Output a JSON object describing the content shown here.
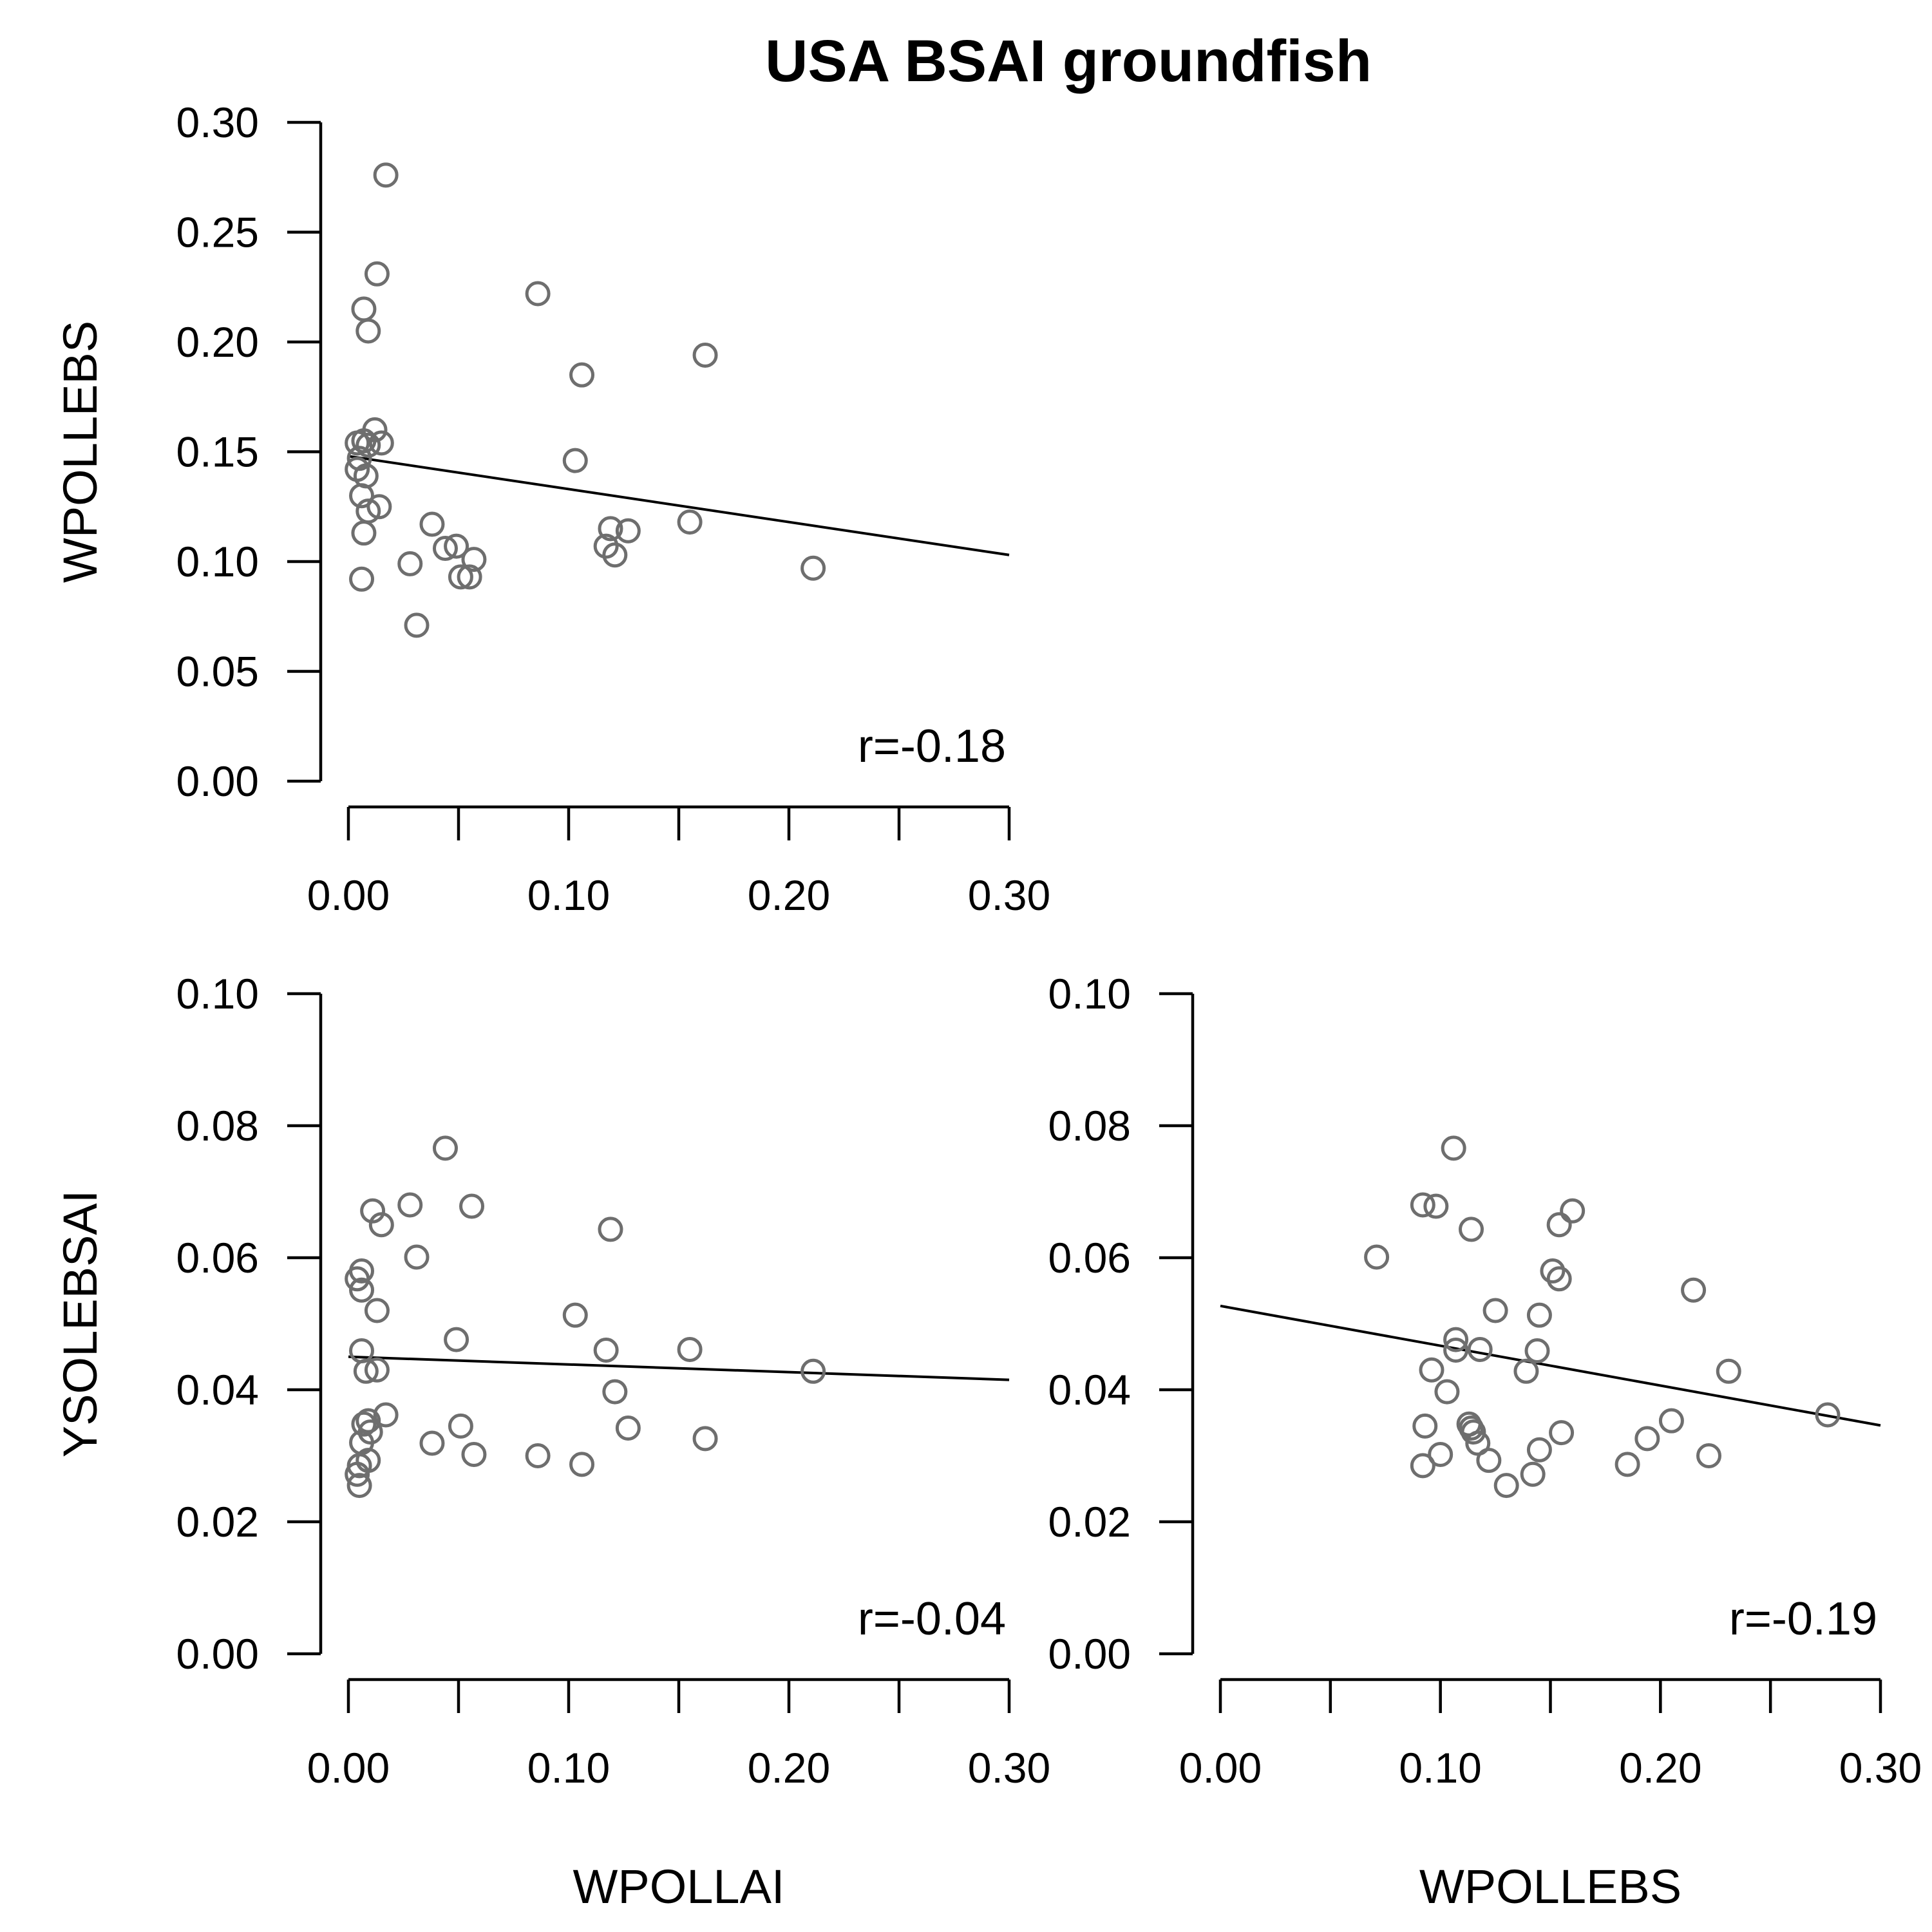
{
  "chart_data": {
    "title": "USA BSAI groundfish",
    "panels": [
      {
        "type": "scatter",
        "xlabel": "",
        "ylabel": "WPOLLEBS",
        "xlim": [
          0,
          0.3
        ],
        "ylim": [
          0,
          0.3
        ],
        "x_ticks": [
          0.0,
          0.05,
          0.1,
          0.15,
          0.2,
          0.25,
          0.3
        ],
        "x_tick_labels": [
          "0.00",
          "",
          "0.10",
          "",
          "0.20",
          "",
          "0.30"
        ],
        "y_ticks": [
          0.0,
          0.05,
          0.1,
          0.15,
          0.2,
          0.25,
          0.3
        ],
        "y_tick_labels": [
          "0.00",
          "0.05",
          "0.10",
          "0.15",
          "0.20",
          "0.25",
          "0.30"
        ],
        "annotation": "r=-0.18",
        "fit_line": [
          [
            0.0,
            0.148
          ],
          [
            0.3,
            0.103
          ]
        ],
        "points": [
          [
            0.017,
            0.276
          ],
          [
            0.013,
            0.231
          ],
          [
            0.007,
            0.215
          ],
          [
            0.009,
            0.205
          ],
          [
            0.086,
            0.222
          ],
          [
            0.106,
            0.185
          ],
          [
            0.162,
            0.194
          ],
          [
            0.004,
            0.154
          ],
          [
            0.007,
            0.155
          ],
          [
            0.009,
            0.153
          ],
          [
            0.012,
            0.16
          ],
          [
            0.015,
            0.154
          ],
          [
            0.005,
            0.147
          ],
          [
            0.004,
            0.142
          ],
          [
            0.008,
            0.139
          ],
          [
            0.006,
            0.13
          ],
          [
            0.014,
            0.125
          ],
          [
            0.009,
            0.123
          ],
          [
            0.007,
            0.113
          ],
          [
            0.006,
            0.092
          ],
          [
            0.103,
            0.146
          ],
          [
            0.038,
            0.117
          ],
          [
            0.044,
            0.106
          ],
          [
            0.049,
            0.107
          ],
          [
            0.057,
            0.101
          ],
          [
            0.051,
            0.093
          ],
          [
            0.055,
            0.093
          ],
          [
            0.028,
            0.099
          ],
          [
            0.031,
            0.071
          ],
          [
            0.119,
            0.115
          ],
          [
            0.117,
            0.107
          ],
          [
            0.121,
            0.103
          ],
          [
            0.127,
            0.114
          ],
          [
            0.155,
            0.118
          ],
          [
            0.211,
            0.097
          ]
        ]
      },
      {
        "type": "scatter",
        "xlabel": "WPOLLAI",
        "ylabel": "YSOLEBSAI",
        "xlim": [
          0,
          0.3
        ],
        "ylim": [
          0,
          0.1
        ],
        "x_ticks": [
          0.0,
          0.05,
          0.1,
          0.15,
          0.2,
          0.25,
          0.3
        ],
        "x_tick_labels": [
          "0.00",
          "",
          "0.10",
          "",
          "0.20",
          "",
          "0.30"
        ],
        "y_ticks": [
          0.0,
          0.02,
          0.04,
          0.06,
          0.08,
          0.1
        ],
        "y_tick_labels": [
          "0.00",
          "0.02",
          "0.04",
          "0.06",
          "0.08",
          "0.10"
        ],
        "annotation": "r=-0.04",
        "fit_line": [
          [
            0.0,
            0.045
          ],
          [
            0.3,
            0.0415
          ]
        ],
        "points": [
          [
            0.044,
            0.0766
          ],
          [
            0.028,
            0.068
          ],
          [
            0.056,
            0.0678
          ],
          [
            0.011,
            0.0671
          ],
          [
            0.015,
            0.065
          ],
          [
            0.119,
            0.0643
          ],
          [
            0.031,
            0.0601
          ],
          [
            0.006,
            0.058
          ],
          [
            0.004,
            0.0568
          ],
          [
            0.006,
            0.0551
          ],
          [
            0.013,
            0.052
          ],
          [
            0.103,
            0.0513
          ],
          [
            0.049,
            0.0476
          ],
          [
            0.006,
            0.0459
          ],
          [
            0.117,
            0.046
          ],
          [
            0.155,
            0.0461
          ],
          [
            0.008,
            0.0428
          ],
          [
            0.013,
            0.043
          ],
          [
            0.211,
            0.0428
          ],
          [
            0.121,
            0.0397
          ],
          [
            0.017,
            0.0362
          ],
          [
            0.007,
            0.0348
          ],
          [
            0.009,
            0.0353
          ],
          [
            0.01,
            0.0336
          ],
          [
            0.006,
            0.032
          ],
          [
            0.051,
            0.0345
          ],
          [
            0.127,
            0.0342
          ],
          [
            0.038,
            0.0319
          ],
          [
            0.162,
            0.0326
          ],
          [
            0.057,
            0.0302
          ],
          [
            0.086,
            0.03
          ],
          [
            0.106,
            0.0287
          ],
          [
            0.009,
            0.0293
          ],
          [
            0.005,
            0.0285
          ],
          [
            0.004,
            0.0272
          ],
          [
            0.005,
            0.0255
          ]
        ]
      },
      {
        "type": "scatter",
        "xlabel": "WPOLLEBS",
        "ylabel": "",
        "xlim": [
          0,
          0.3
        ],
        "ylim": [
          0,
          0.1
        ],
        "x_ticks": [
          0.0,
          0.05,
          0.1,
          0.15,
          0.2,
          0.25,
          0.3
        ],
        "x_tick_labels": [
          "0.00",
          "",
          "0.10",
          "",
          "0.20",
          "",
          "0.30"
        ],
        "y_ticks": [
          0.0,
          0.02,
          0.04,
          0.06,
          0.08,
          0.1
        ],
        "y_tick_labels": [
          "0.00",
          "0.02",
          "0.04",
          "0.06",
          "0.08",
          "0.10"
        ],
        "annotation": "r=-0.19",
        "fit_line": [
          [
            0.0,
            0.0527
          ],
          [
            0.3,
            0.0346
          ]
        ],
        "points": [
          [
            0.106,
            0.0766
          ],
          [
            0.092,
            0.068
          ],
          [
            0.098,
            0.0678
          ],
          [
            0.16,
            0.0671
          ],
          [
            0.154,
            0.065
          ],
          [
            0.114,
            0.0643
          ],
          [
            0.071,
            0.0601
          ],
          [
            0.151,
            0.058
          ],
          [
            0.154,
            0.0568
          ],
          [
            0.215,
            0.0551
          ],
          [
            0.125,
            0.052
          ],
          [
            0.145,
            0.0513
          ],
          [
            0.107,
            0.0476
          ],
          [
            0.144,
            0.0459
          ],
          [
            0.107,
            0.046
          ],
          [
            0.118,
            0.0461
          ],
          [
            0.139,
            0.0428
          ],
          [
            0.096,
            0.043
          ],
          [
            0.231,
            0.0428
          ],
          [
            0.103,
            0.0397
          ],
          [
            0.276,
            0.0362
          ],
          [
            0.113,
            0.0348
          ],
          [
            0.205,
            0.0353
          ],
          [
            0.115,
            0.0336
          ],
          [
            0.155,
            0.0335
          ],
          [
            0.093,
            0.0345
          ],
          [
            0.114,
            0.0342
          ],
          [
            0.117,
            0.0319
          ],
          [
            0.194,
            0.0326
          ],
          [
            0.145,
            0.0309
          ],
          [
            0.222,
            0.03
          ],
          [
            0.1,
            0.0302
          ],
          [
            0.185,
            0.0287
          ],
          [
            0.122,
            0.0293
          ],
          [
            0.092,
            0.0285
          ],
          [
            0.142,
            0.0272
          ],
          [
            0.13,
            0.0255
          ]
        ]
      }
    ]
  }
}
